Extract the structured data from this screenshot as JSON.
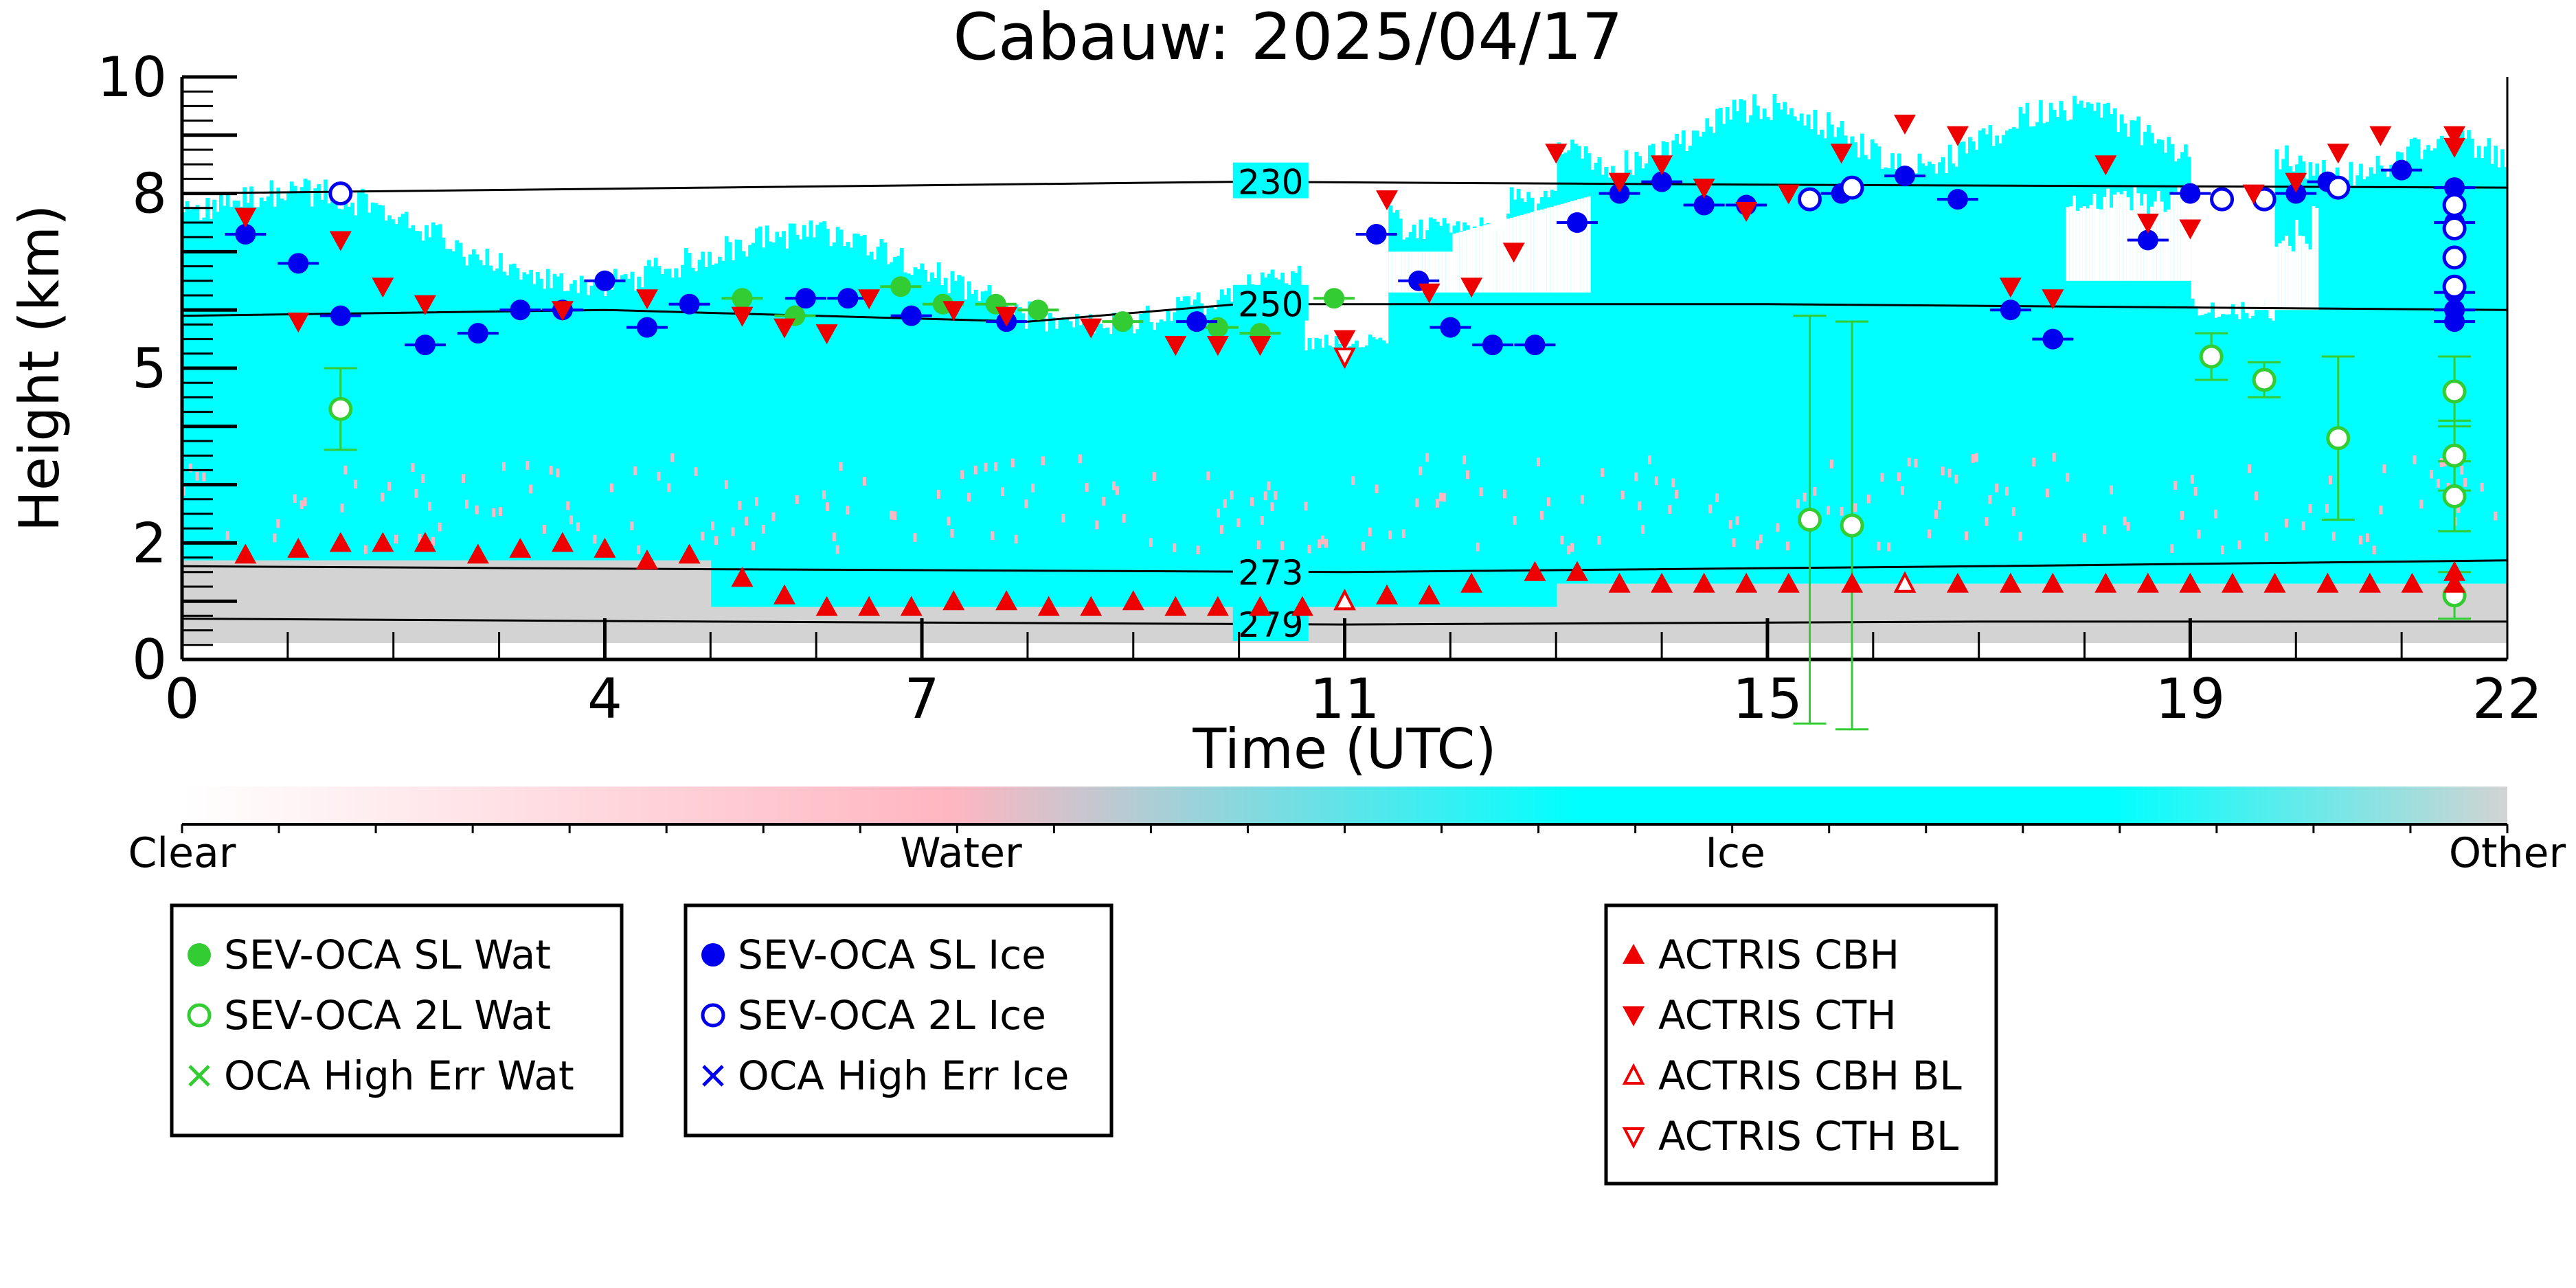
{
  "chart_data": {
    "type": "scatter",
    "title": "Cabauw: 2025/04/17",
    "xlabel": "Time (UTC)",
    "ylabel": "Height (km)",
    "xlim": [
      0,
      22
    ],
    "ylim": [
      0,
      10
    ],
    "x_ticks": [
      0,
      4,
      7,
      11,
      15,
      19,
      22
    ],
    "y_ticks": [
      0,
      2,
      5,
      8,
      10
    ],
    "x_tick_labels": [
      "0",
      "4",
      "7",
      "11",
      "15",
      "19",
      "22"
    ],
    "y_tick_labels": [
      "0",
      "2",
      "5",
      "8",
      "10"
    ],
    "colorbar": {
      "labels": [
        "Clear",
        "Water",
        "Ice",
        "Other"
      ],
      "colors": [
        "#ffffff",
        "#ffb6c1",
        "#00ffff",
        "#d3d3d3"
      ]
    },
    "isotherms": [
      {
        "label": "230",
        "x": [
          0,
          5,
          10,
          15,
          22
        ],
        "y": [
          8.0,
          8.1,
          8.2,
          8.15,
          8.1
        ]
      },
      {
        "label": "250",
        "x": [
          0,
          4,
          8,
          10,
          15,
          22
        ],
        "y": [
          5.9,
          6.0,
          5.8,
          6.1,
          6.1,
          6.0
        ]
      },
      {
        "label": "273",
        "x": [
          0,
          5,
          11,
          17,
          22
        ],
        "y": [
          1.6,
          1.55,
          1.5,
          1.6,
          1.7
        ]
      },
      {
        "label": "279",
        "x": [
          0,
          5,
          11,
          17,
          22
        ],
        "y": [
          0.7,
          0.65,
          0.6,
          0.65,
          0.65
        ]
      }
    ],
    "series": [
      {
        "name": "SEV-OCA SL Wat",
        "marker": "filled-circle",
        "color": "#33cc33",
        "points": [
          [
            5.3,
            6.2
          ],
          [
            5.8,
            5.9
          ],
          [
            6.8,
            6.4
          ],
          [
            7.2,
            6.1
          ],
          [
            7.7,
            6.1
          ],
          [
            8.1,
            6.0
          ],
          [
            8.9,
            5.8
          ],
          [
            9.8,
            5.7
          ],
          [
            10.2,
            5.6
          ],
          [
            10.9,
            6.2
          ]
        ]
      },
      {
        "name": "SEV-OCA 2L Wat",
        "marker": "open-circle",
        "color": "#33cc33",
        "errors": [
          [
            1.5,
            4.3,
            0.7
          ],
          [
            15.4,
            2.4,
            3.5
          ],
          [
            15.8,
            2.3,
            3.5
          ],
          [
            19.2,
            5.2,
            0.4
          ],
          [
            19.7,
            4.8,
            0.3
          ],
          [
            20.4,
            3.8,
            1.4
          ],
          [
            21.5,
            4.6,
            0.6
          ],
          [
            21.5,
            3.5,
            0.6
          ],
          [
            21.5,
            2.8,
            0.6
          ],
          [
            21.5,
            1.1,
            0.4
          ]
        ],
        "points": [
          [
            1.5,
            4.3
          ],
          [
            15.4,
            2.4
          ],
          [
            15.8,
            2.3
          ],
          [
            19.2,
            5.2
          ],
          [
            19.7,
            4.8
          ],
          [
            20.4,
            3.8
          ],
          [
            21.5,
            4.6
          ],
          [
            21.5,
            3.5
          ],
          [
            21.5,
            2.8
          ],
          [
            21.5,
            1.1
          ]
        ]
      },
      {
        "name": "OCA High Err Wat",
        "marker": "x",
        "color": "#33cc33",
        "points": []
      },
      {
        "name": "SEV-OCA SL Ice",
        "marker": "filled-circle",
        "color": "#0000ee",
        "points": [
          [
            0.6,
            7.3
          ],
          [
            1.1,
            6.8
          ],
          [
            1.5,
            5.9
          ],
          [
            2.3,
            5.4
          ],
          [
            2.8,
            5.6
          ],
          [
            3.2,
            6.0
          ],
          [
            3.6,
            6.0
          ],
          [
            4.0,
            6.5
          ],
          [
            4.4,
            5.7
          ],
          [
            4.8,
            6.1
          ],
          [
            5.9,
            6.2
          ],
          [
            6.3,
            6.2
          ],
          [
            6.9,
            5.9
          ],
          [
            7.8,
            5.8
          ],
          [
            9.6,
            5.8
          ],
          [
            11.3,
            7.3
          ],
          [
            11.7,
            6.5
          ],
          [
            12.0,
            5.7
          ],
          [
            12.4,
            5.4
          ],
          [
            12.8,
            5.4
          ],
          [
            13.2,
            7.5
          ],
          [
            13.6,
            8.0
          ],
          [
            14.0,
            8.2
          ],
          [
            14.4,
            7.8
          ],
          [
            14.8,
            7.8
          ],
          [
            15.7,
            8.0
          ],
          [
            16.3,
            8.3
          ],
          [
            16.8,
            7.9
          ],
          [
            17.3,
            6.0
          ],
          [
            17.7,
            5.5
          ],
          [
            18.6,
            7.2
          ],
          [
            19.0,
            8.0
          ],
          [
            20.0,
            8.0
          ],
          [
            20.3,
            8.2
          ],
          [
            21.0,
            8.4
          ],
          [
            21.5,
            8.1
          ],
          [
            21.5,
            7.5
          ],
          [
            21.5,
            6.3
          ],
          [
            21.5,
            6.0
          ],
          [
            21.5,
            5.8
          ]
        ]
      },
      {
        "name": "SEV-OCA 2L Ice",
        "marker": "open-circle",
        "color": "#0000ee",
        "points": [
          [
            1.5,
            8.0
          ],
          [
            15.4,
            7.9
          ],
          [
            15.8,
            8.1
          ],
          [
            19.3,
            7.9
          ],
          [
            19.7,
            7.9
          ],
          [
            20.4,
            8.1
          ],
          [
            21.5,
            7.8
          ],
          [
            21.5,
            7.4
          ],
          [
            21.5,
            6.9
          ],
          [
            21.5,
            6.4
          ]
        ]
      },
      {
        "name": "OCA High Err Ice",
        "marker": "x",
        "color": "#0000ee",
        "points": []
      },
      {
        "name": "ACTRIS CBH",
        "marker": "filled-triangle-up",
        "color": "#ee0000",
        "points": [
          [
            0.6,
            1.8
          ],
          [
            1.1,
            1.9
          ],
          [
            1.5,
            2.0
          ],
          [
            1.9,
            2.0
          ],
          [
            2.3,
            2.0
          ],
          [
            2.8,
            1.8
          ],
          [
            3.2,
            1.9
          ],
          [
            3.6,
            2.0
          ],
          [
            4.0,
            1.9
          ],
          [
            4.4,
            1.7
          ],
          [
            4.8,
            1.8
          ],
          [
            5.3,
            1.4
          ],
          [
            5.7,
            1.1
          ],
          [
            6.1,
            0.9
          ],
          [
            6.5,
            0.9
          ],
          [
            6.9,
            0.9
          ],
          [
            7.3,
            1.0
          ],
          [
            7.8,
            1.0
          ],
          [
            8.2,
            0.9
          ],
          [
            8.6,
            0.9
          ],
          [
            9.0,
            1.0
          ],
          [
            9.4,
            0.9
          ],
          [
            9.8,
            0.9
          ],
          [
            10.2,
            0.9
          ],
          [
            10.6,
            0.9
          ],
          [
            11.0,
            1.0
          ],
          [
            11.4,
            1.1
          ],
          [
            11.8,
            1.1
          ],
          [
            12.2,
            1.3
          ],
          [
            12.8,
            1.5
          ],
          [
            13.2,
            1.5
          ],
          [
            13.6,
            1.3
          ],
          [
            14.0,
            1.3
          ],
          [
            14.4,
            1.3
          ],
          [
            14.8,
            1.3
          ],
          [
            15.2,
            1.3
          ],
          [
            15.8,
            1.3
          ],
          [
            16.3,
            1.3
          ],
          [
            16.8,
            1.3
          ],
          [
            17.3,
            1.3
          ],
          [
            17.7,
            1.3
          ],
          [
            18.2,
            1.3
          ],
          [
            18.6,
            1.3
          ],
          [
            19.0,
            1.3
          ],
          [
            19.4,
            1.3
          ],
          [
            19.8,
            1.3
          ],
          [
            20.3,
            1.3
          ],
          [
            20.7,
            1.3
          ],
          [
            21.1,
            1.3
          ],
          [
            21.5,
            1.3
          ],
          [
            21.5,
            1.5
          ]
        ]
      },
      {
        "name": "ACTRIS CTH",
        "marker": "filled-triangle-down",
        "color": "#ee0000",
        "points": [
          [
            0.6,
            7.6
          ],
          [
            1.1,
            5.8
          ],
          [
            1.5,
            7.2
          ],
          [
            1.9,
            6.4
          ],
          [
            2.3,
            6.1
          ],
          [
            3.6,
            6.0
          ],
          [
            4.4,
            6.2
          ],
          [
            5.3,
            5.9
          ],
          [
            5.7,
            5.7
          ],
          [
            6.1,
            5.6
          ],
          [
            6.5,
            6.2
          ],
          [
            7.3,
            6.0
          ],
          [
            7.8,
            5.9
          ],
          [
            8.6,
            5.7
          ],
          [
            9.4,
            5.4
          ],
          [
            9.8,
            5.4
          ],
          [
            10.2,
            5.4
          ],
          [
            11.0,
            5.5
          ],
          [
            11.4,
            7.9
          ],
          [
            11.8,
            6.3
          ],
          [
            12.2,
            6.4
          ],
          [
            12.6,
            7.0
          ],
          [
            13.0,
            8.7
          ],
          [
            13.6,
            8.2
          ],
          [
            14.0,
            8.5
          ],
          [
            14.4,
            8.1
          ],
          [
            14.8,
            7.7
          ],
          [
            15.2,
            8.0
          ],
          [
            15.7,
            8.7
          ],
          [
            16.3,
            9.2
          ],
          [
            16.8,
            9.0
          ],
          [
            17.3,
            6.4
          ],
          [
            17.7,
            6.2
          ],
          [
            18.2,
            8.5
          ],
          [
            18.6,
            7.5
          ],
          [
            19.0,
            7.4
          ],
          [
            19.6,
            8.0
          ],
          [
            20.0,
            8.2
          ],
          [
            20.4,
            8.7
          ],
          [
            20.8,
            9.0
          ],
          [
            21.5,
            9.0
          ],
          [
            21.5,
            8.8
          ]
        ]
      },
      {
        "name": "ACTRIS CBH BL",
        "marker": "open-triangle-up",
        "color": "#ee0000",
        "points": [
          [
            11.0,
            1.0
          ],
          [
            16.3,
            1.3
          ]
        ]
      },
      {
        "name": "ACTRIS CTH BL",
        "marker": "open-triangle-down",
        "color": "#ee0000",
        "points": [
          [
            11.0,
            5.2
          ]
        ]
      }
    ]
  }
}
